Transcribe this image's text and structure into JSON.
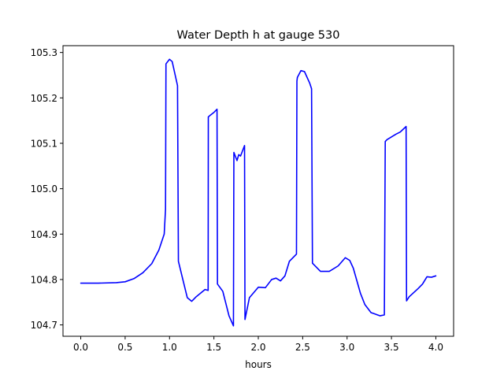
{
  "chart_data": {
    "type": "line",
    "title": "Water Depth h at gauge 530",
    "xlabel": "hours",
    "ylabel": "",
    "xlim": [
      -0.2,
      4.2
    ],
    "ylim": [
      104.675,
      105.315
    ],
    "xticks": [
      0.0,
      0.5,
      1.0,
      1.5,
      2.0,
      2.5,
      3.0,
      3.5,
      4.0
    ],
    "xtick_labels": [
      "0.0",
      "0.5",
      "1.0",
      "1.5",
      "2.0",
      "2.5",
      "3.0",
      "3.5",
      "4.0"
    ],
    "yticks": [
      104.7,
      104.8,
      104.9,
      105.0,
      105.1,
      105.2,
      105.3
    ],
    "ytick_labels": [
      "104.7",
      "104.8",
      "104.9",
      "105.0",
      "105.1",
      "105.2",
      "105.3"
    ],
    "grid": false,
    "legend": "none",
    "colors": {
      "line": "#0000ff",
      "axes": "#000000",
      "background": "#ffffff"
    },
    "series": [
      {
        "x": [
          0.0,
          0.2,
          0.4,
          0.5,
          0.6,
          0.7,
          0.8,
          0.88,
          0.94,
          0.955,
          0.96,
          1.0,
          1.03,
          1.09,
          1.1,
          1.15,
          1.2,
          1.25,
          1.3,
          1.4,
          1.435,
          1.437,
          1.46,
          1.5,
          1.535,
          1.54,
          1.6,
          1.67,
          1.72,
          1.725,
          1.76,
          1.78,
          1.8,
          1.845,
          1.85,
          1.9,
          2.0,
          2.08,
          2.15,
          2.2,
          2.25,
          2.3,
          2.35,
          2.43,
          2.435,
          2.44,
          2.48,
          2.52,
          2.58,
          2.6,
          2.61,
          2.7,
          2.8,
          2.9,
          2.98,
          3.03,
          3.07,
          3.15,
          3.2,
          3.27,
          3.3,
          3.37,
          3.42,
          3.43,
          3.45,
          3.55,
          3.6,
          3.665,
          3.67,
          3.7,
          3.8,
          3.85,
          3.9,
          3.95,
          4.0
        ],
        "y": [
          104.792,
          104.792,
          104.793,
          104.795,
          104.802,
          104.815,
          104.835,
          104.865,
          104.9,
          104.955,
          105.275,
          105.285,
          105.28,
          105.227,
          104.84,
          104.8,
          104.76,
          104.752,
          104.762,
          104.778,
          104.776,
          105.158,
          105.162,
          105.168,
          105.175,
          104.79,
          104.774,
          104.72,
          104.698,
          105.08,
          105.062,
          105.075,
          105.072,
          105.095,
          104.712,
          104.76,
          104.783,
          104.782,
          104.8,
          104.803,
          104.797,
          104.808,
          104.84,
          104.856,
          105.237,
          105.245,
          105.26,
          105.258,
          105.232,
          105.22,
          104.836,
          104.818,
          104.818,
          104.83,
          104.848,
          104.842,
          104.825,
          104.77,
          104.745,
          104.727,
          104.725,
          104.72,
          104.722,
          105.104,
          105.108,
          105.12,
          105.125,
          105.137,
          104.753,
          104.762,
          104.78,
          104.79,
          104.806,
          104.805,
          104.808
        ]
      }
    ]
  }
}
